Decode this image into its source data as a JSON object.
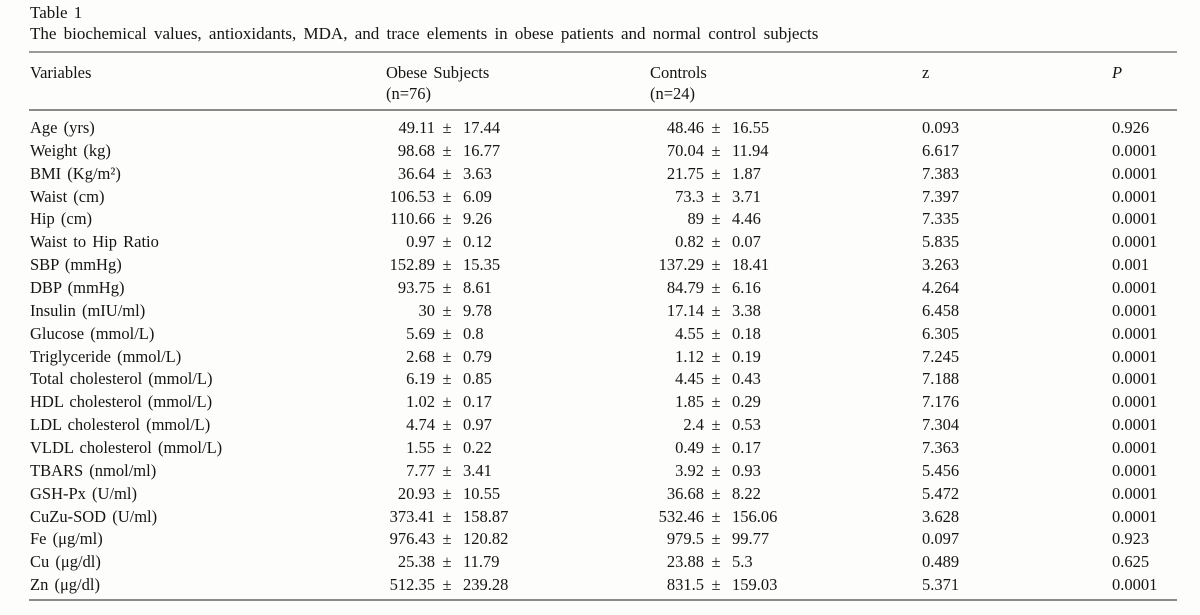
{
  "table": {
    "label": "Table 1",
    "caption": "The biochemical values, antioxidants, MDA, and trace elements in obese patients and normal control subjects",
    "plus_minus": "±",
    "columns": {
      "variables": "Variables",
      "obese": "Obese Subjects",
      "obese_n": "(n=76)",
      "controls": "Controls",
      "controls_n": "(n=24)",
      "z": "z",
      "p": "P"
    },
    "rows": [
      {
        "variable": "Age (yrs)",
        "obese_mean": "49.11",
        "obese_sd": "17.44",
        "controls_mean": "48.46",
        "controls_sd": "16.55",
        "z": "0.093",
        "p": "0.926"
      },
      {
        "variable": "Weight (kg)",
        "obese_mean": "98.68",
        "obese_sd": "16.77",
        "controls_mean": "70.04",
        "controls_sd": "11.94",
        "z": "6.617",
        "p": "0.0001"
      },
      {
        "variable": "BMI (Kg/m²)",
        "obese_mean": "36.64",
        "obese_sd": "3.63",
        "controls_mean": "21.75",
        "controls_sd": "1.87",
        "z": "7.383",
        "p": "0.0001"
      },
      {
        "variable": "Waist (cm)",
        "obese_mean": "106.53",
        "obese_sd": "6.09",
        "controls_mean": "73.3",
        "controls_sd": "3.71",
        "z": "7.397",
        "p": "0.0001"
      },
      {
        "variable": "Hip (cm)",
        "obese_mean": "110.66",
        "obese_sd": "9.26",
        "controls_mean": "89",
        "controls_sd": "4.46",
        "z": "7.335",
        "p": "0.0001"
      },
      {
        "variable": "Waist to Hip Ratio",
        "obese_mean": "0.97",
        "obese_sd": "0.12",
        "controls_mean": "0.82",
        "controls_sd": "0.07",
        "z": "5.835",
        "p": "0.0001"
      },
      {
        "variable": "SBP (mmHg)",
        "obese_mean": "152.89",
        "obese_sd": "15.35",
        "controls_mean": "137.29",
        "controls_sd": "18.41",
        "z": "3.263",
        "p": "0.001"
      },
      {
        "variable": "DBP (mmHg)",
        "obese_mean": "93.75",
        "obese_sd": "8.61",
        "controls_mean": "84.79",
        "controls_sd": "6.16",
        "z": "4.264",
        "p": "0.0001"
      },
      {
        "variable": "Insulin (mIU/ml)",
        "obese_mean": "30",
        "obese_sd": "9.78",
        "controls_mean": "17.14",
        "controls_sd": "3.38",
        "z": "6.458",
        "p": "0.0001"
      },
      {
        "variable": "Glucose (mmol/L)",
        "obese_mean": "5.69",
        "obese_sd": "0.8",
        "controls_mean": "4.55",
        "controls_sd": "0.18",
        "z": "6.305",
        "p": "0.0001"
      },
      {
        "variable": "Triglyceride (mmol/L)",
        "obese_mean": "2.68",
        "obese_sd": "0.79",
        "controls_mean": "1.12",
        "controls_sd": "0.19",
        "z": "7.245",
        "p": "0.0001"
      },
      {
        "variable": "Total cholesterol (mmol/L)",
        "obese_mean": "6.19",
        "obese_sd": "0.85",
        "controls_mean": "4.45",
        "controls_sd": "0.43",
        "z": "7.188",
        "p": "0.0001"
      },
      {
        "variable": "HDL cholesterol (mmol/L)",
        "obese_mean": "1.02",
        "obese_sd": "0.17",
        "controls_mean": "1.85",
        "controls_sd": "0.29",
        "z": "7.176",
        "p": "0.0001"
      },
      {
        "variable": "LDL cholesterol (mmol/L)",
        "obese_mean": "4.74",
        "obese_sd": "0.97",
        "controls_mean": "2.4",
        "controls_sd": "0.53",
        "z": "7.304",
        "p": "0.0001"
      },
      {
        "variable": "VLDL cholesterol (mmol/L)",
        "obese_mean": "1.55",
        "obese_sd": "0.22",
        "controls_mean": "0.49",
        "controls_sd": "0.17",
        "z": "7.363",
        "p": "0.0001"
      },
      {
        "variable": "TBARS (nmol/ml)",
        "obese_mean": "7.77",
        "obese_sd": "3.41",
        "controls_mean": "3.92",
        "controls_sd": "0.93",
        "z": "5.456",
        "p": "0.0001"
      },
      {
        "variable": "GSH-Px (U/ml)",
        "obese_mean": "20.93",
        "obese_sd": "10.55",
        "controls_mean": "36.68",
        "controls_sd": "8.22",
        "z": "5.472",
        "p": "0.0001"
      },
      {
        "variable": "CuZu-SOD (U/ml)",
        "obese_mean": "373.41",
        "obese_sd": "158.87",
        "controls_mean": "532.46",
        "controls_sd": "156.06",
        "z": "3.628",
        "p": "0.0001"
      },
      {
        "variable": "Fe (μg/ml)",
        "obese_mean": "976.43",
        "obese_sd": "120.82",
        "controls_mean": "979.5",
        "controls_sd": "99.77",
        "z": "0.097",
        "p": "0.923"
      },
      {
        "variable": "Cu (μg/dl)",
        "obese_mean": "25.38",
        "obese_sd": "11.79",
        "controls_mean": "23.88",
        "controls_sd": "5.3",
        "z": "0.489",
        "p": "0.625"
      },
      {
        "variable": "Zn (μg/dl)",
        "obese_mean": "512.35",
        "obese_sd": "239.28",
        "controls_mean": "831.5",
        "controls_sd": "159.03",
        "z": "5.371",
        "p": "0.0001"
      }
    ]
  }
}
